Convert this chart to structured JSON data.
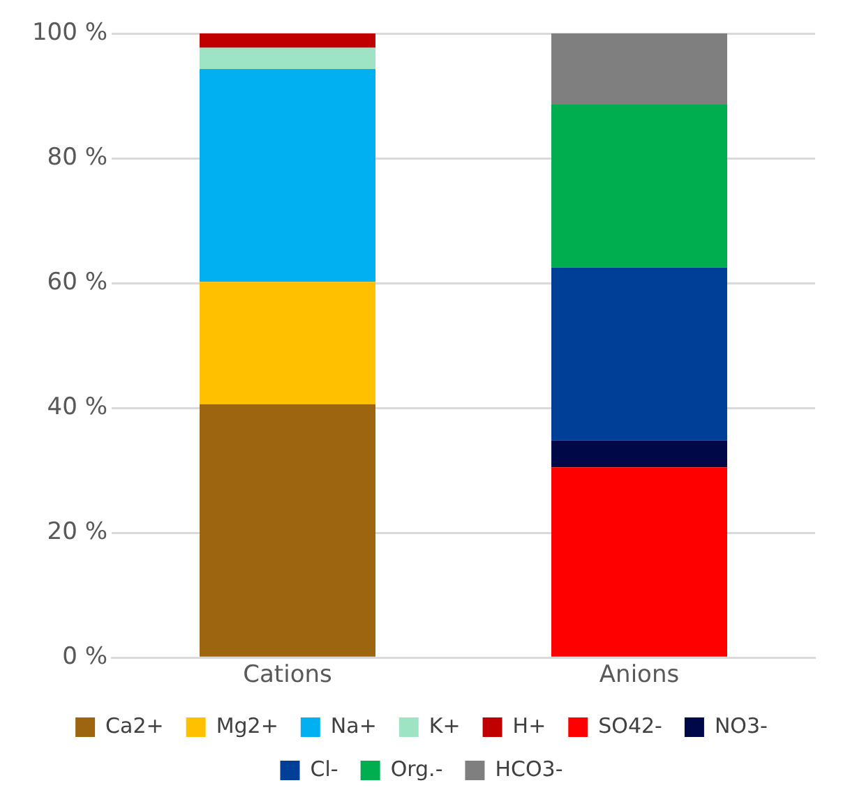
{
  "chart_data": {
    "type": "bar",
    "stacked": true,
    "categories": [
      "Cations",
      "Anions"
    ],
    "series": [
      {
        "name": "Ca2+",
        "color": "#9e6510",
        "values": [
          40.6,
          null
        ]
      },
      {
        "name": "Mg2+",
        "color": "#ffc000",
        "values": [
          19.6,
          null
        ]
      },
      {
        "name": "Na+",
        "color": "#00b0f0",
        "values": [
          34.1,
          null
        ]
      },
      {
        "name": "K+",
        "color": "#9fe3c5",
        "values": [
          3.4,
          null
        ]
      },
      {
        "name": "H+",
        "color": "#c00000",
        "values": [
          2.3,
          null
        ]
      },
      {
        "name": "SO42-",
        "color": "#ff0000",
        "values": [
          null,
          30.5
        ]
      },
      {
        "name": "NO3-",
        "color": "#000848",
        "values": [
          null,
          4.3
        ]
      },
      {
        "name": "Cl-",
        "color": "#003f98",
        "values": [
          null,
          27.7
        ]
      },
      {
        "name": "Org.-",
        "color": "#00ad4f",
        "values": [
          null,
          26.1
        ]
      },
      {
        "name": "HCO3-",
        "color": "#7f7f7f",
        "values": [
          null,
          11.4
        ]
      }
    ],
    "ylim": [
      0,
      100
    ],
    "yticks": [
      {
        "value": 0,
        "label": "0 %"
      },
      {
        "value": 20,
        "label": "20 %"
      },
      {
        "value": 40,
        "label": "40 %"
      },
      {
        "value": 60,
        "label": "60 %"
      },
      {
        "value": 80,
        "label": "80 %"
      },
      {
        "value": 100,
        "label": "100 %"
      }
    ],
    "grid": "y",
    "legend": "bottom"
  }
}
